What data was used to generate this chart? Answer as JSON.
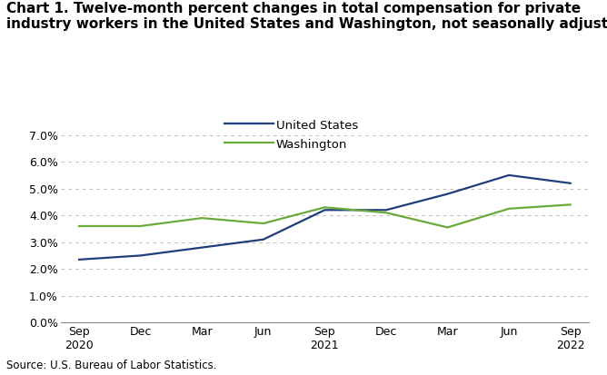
{
  "title_line1": "Chart 1. Twelve-month percent changes in total compensation for private",
  "title_line2": "industry workers in the United States and Washington, not seasonally adjusted",
  "x_labels": [
    "Sep\n2020",
    "Dec",
    "Mar",
    "Jun",
    "Sep\n2021",
    "Dec",
    "Mar",
    "Jun",
    "Sep\n2022"
  ],
  "us_values": [
    2.35,
    2.5,
    2.8,
    3.1,
    4.2,
    4.2,
    4.8,
    5.5,
    5.2
  ],
  "wa_values": [
    3.6,
    3.6,
    3.9,
    3.7,
    4.3,
    4.1,
    3.55,
    4.25,
    4.4
  ],
  "us_color": "#1f3f7a",
  "wa_color": "#6aaa3a",
  "ylim_min": 0.0,
  "ylim_max": 7.0,
  "ytick_vals": [
    0.0,
    1.0,
    2.0,
    3.0,
    4.0,
    5.0,
    6.0,
    7.0
  ],
  "ytick_labels": [
    "0.0%",
    "1.0%",
    "2.0%",
    "3.0%",
    "4.0%",
    "5.0%",
    "6.0%",
    "7.0%"
  ],
  "legend_labels": [
    "United States",
    "Washington"
  ],
  "source": "Source: U.S. Bureau of Labor Statistics.",
  "background_color": "#ffffff",
  "grid_color": "#c0c0c0",
  "line_width": 1.6,
  "title_fontsize": 11.0,
  "tick_fontsize": 9.0,
  "legend_fontsize": 9.5,
  "source_fontsize": 8.5
}
